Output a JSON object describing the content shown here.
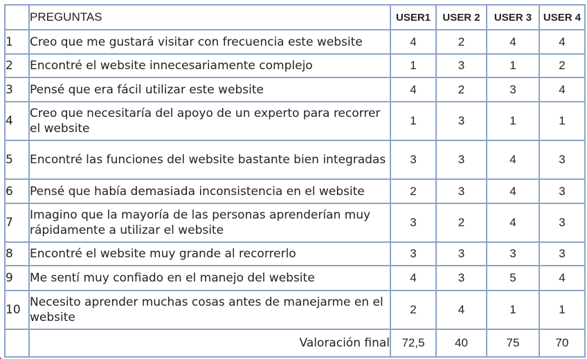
{
  "header": {
    "preguntas": "PREGUNTAS",
    "users": [
      "USER1",
      "USER 2",
      "USER 3",
      "USER 4"
    ]
  },
  "rows": [
    {
      "num": "1",
      "question": "Creo que me gustará visitar con frecuencia este website",
      "scores": [
        "4",
        "2",
        "4",
        "4"
      ]
    },
    {
      "num": "2",
      "question": "Encontré el website innecesariamente complejo",
      "scores": [
        "1",
        "3",
        "1",
        "2"
      ]
    },
    {
      "num": "3",
      "question": "Pensé que era fácil utilizar este website",
      "scores": [
        "4",
        "2",
        "3",
        "4"
      ]
    },
    {
      "num": "4",
      "question": "Creo que necesitaría del apoyo de un experto para recorrer el website",
      "scores": [
        "1",
        "3",
        "1",
        "1"
      ]
    },
    {
      "num": "5",
      "question": "Encontré las funciones del website bastante bien integradas",
      "scores": [
        "3",
        "3",
        "4",
        "3"
      ]
    },
    {
      "num": "6",
      "question": "Pensé que había demasiada inconsistencia en el website",
      "scores": [
        "2",
        "3",
        "4",
        "3"
      ]
    },
    {
      "num": "7",
      "question": "Imagino que la mayoría de las personas aprenderían muy rápidamente a utilizar el website",
      "scores": [
        "3",
        "2",
        "4",
        "3"
      ]
    },
    {
      "num": "8",
      "question": "Encontré el website muy grande al recorrerlo",
      "scores": [
        "3",
        "3",
        "3",
        "3"
      ]
    },
    {
      "num": "9",
      "question": "Me sentí muy confiado en el manejo del website",
      "scores": [
        "4",
        "3",
        "5",
        "4"
      ]
    },
    {
      "num": "10",
      "question": "Necesito aprender muchas cosas antes de manejarme en el website",
      "scores": [
        "2",
        "4",
        "1",
        "1"
      ]
    }
  ],
  "footer": {
    "label": "Valoración final",
    "values": [
      "72,5",
      "40",
      "75",
      "70"
    ]
  }
}
